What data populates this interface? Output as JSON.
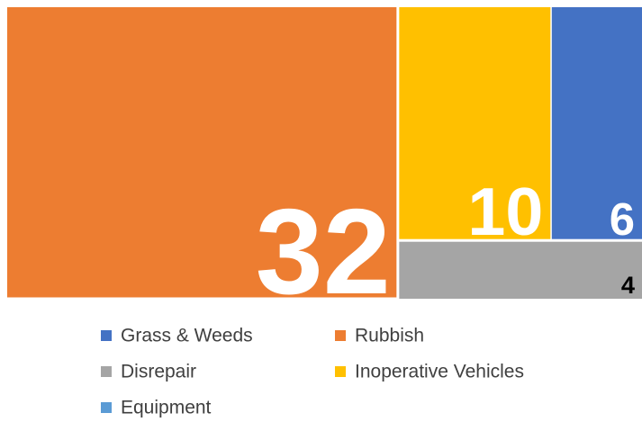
{
  "chart_data": {
    "type": "treemap",
    "categories": [
      "Grass & Weeds",
      "Rubbish",
      "Disrepair",
      "Inoperative Vehicles",
      "Equipment"
    ],
    "values": [
      6,
      32,
      4,
      10,
      null
    ],
    "colors": [
      "#4472c4",
      "#ed7d31",
      "#a5a5a5",
      "#ffc000",
      "#5b9bd5"
    ],
    "legend": "bottom"
  }
}
